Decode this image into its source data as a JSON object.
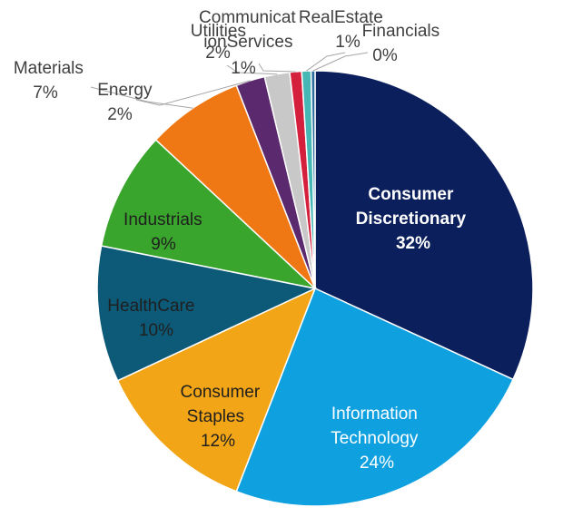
{
  "chart_data": {
    "type": "pie",
    "title": "",
    "slices": [
      {
        "label_lines": [
          "Consumer",
          "Discretionary"
        ],
        "percent_label": "32%",
        "value": 32.5,
        "color": "#0b1f5c"
      },
      {
        "label_lines": [
          "Information",
          "Technology"
        ],
        "percent_label": "24%",
        "value": 24.5,
        "color": "#0fa0e0"
      },
      {
        "label_lines": [
          "Consumer",
          "Staples"
        ],
        "percent_label": "12%",
        "value": 12.4,
        "color": "#f2a516"
      },
      {
        "label_lines": [
          "HealthCare"
        ],
        "percent_label": "10%",
        "value": 10.3,
        "color": "#0d5a78"
      },
      {
        "label_lines": [
          "Industrials"
        ],
        "percent_label": "9%",
        "value": 9.0,
        "color": "#3aa52d"
      },
      {
        "label_lines": [
          "Materials"
        ],
        "percent_label": "7%",
        "value": 7.3,
        "color": "#f07814"
      },
      {
        "label_lines": [
          "Energy"
        ],
        "percent_label": "2%",
        "value": 2.2,
        "color": "#5b2a6e"
      },
      {
        "label_lines": [
          "Utilities"
        ],
        "percent_label": "2%",
        "value": 1.9,
        "color": "#c8c8c8"
      },
      {
        "label_lines": [
          "Communicat",
          "ionServices"
        ],
        "percent_label": "1%",
        "value": 0.9,
        "color": "#d4203c"
      },
      {
        "label_lines": [
          "RealEstate"
        ],
        "percent_label": "1%",
        "value": 0.7,
        "color": "#45b7b4"
      },
      {
        "label_lines": [
          "Financials"
        ],
        "percent_label": "0%",
        "value": 0.3,
        "color": "#2c6e9e"
      }
    ]
  }
}
